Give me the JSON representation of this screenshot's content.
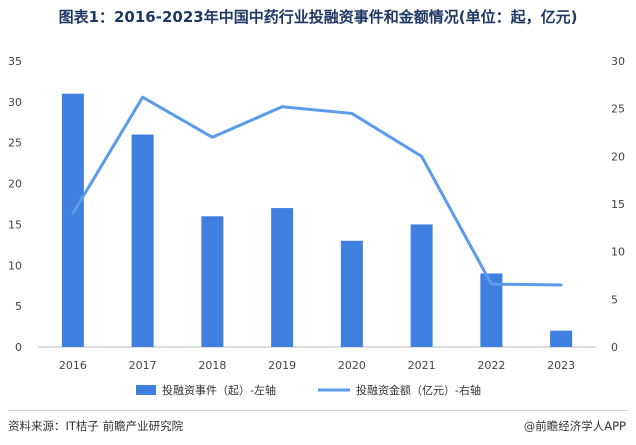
{
  "source_text": "资料来源：IT桔子 前瞻产业研究院",
  "brand_text": "@前瞻经济学人APP",
  "chart_data": {
    "type": "bar",
    "title": "图表1：2016-2023年中国中药行业投融资事件和金额情况(单位：起，亿元)",
    "categories": [
      "2016",
      "2017",
      "2018",
      "2019",
      "2020",
      "2021",
      "2022",
      "2023"
    ],
    "series": [
      {
        "name": "投融资事件（起）-左轴",
        "type": "bar",
        "axis": "left",
        "color": "#3f7fe0",
        "values": [
          31,
          26,
          16,
          17,
          13,
          15,
          9,
          2
        ]
      },
      {
        "name": "投融资金额（亿元）-右轴",
        "type": "line",
        "axis": "right",
        "color": "#5b9bec",
        "values": [
          14,
          26.2,
          22,
          25.2,
          24.5,
          20,
          6.6,
          6.5
        ]
      }
    ],
    "y_left": {
      "min": 0,
      "max": 35,
      "ticks": [
        "0",
        "5",
        "10",
        "15",
        "20",
        "25",
        "30",
        "35"
      ]
    },
    "y_right": {
      "min": 0,
      "max": 30,
      "ticks": [
        "0",
        "5",
        "10",
        "15",
        "20",
        "25",
        "30"
      ]
    },
    "grid": false,
    "legend_position": "bottom"
  }
}
